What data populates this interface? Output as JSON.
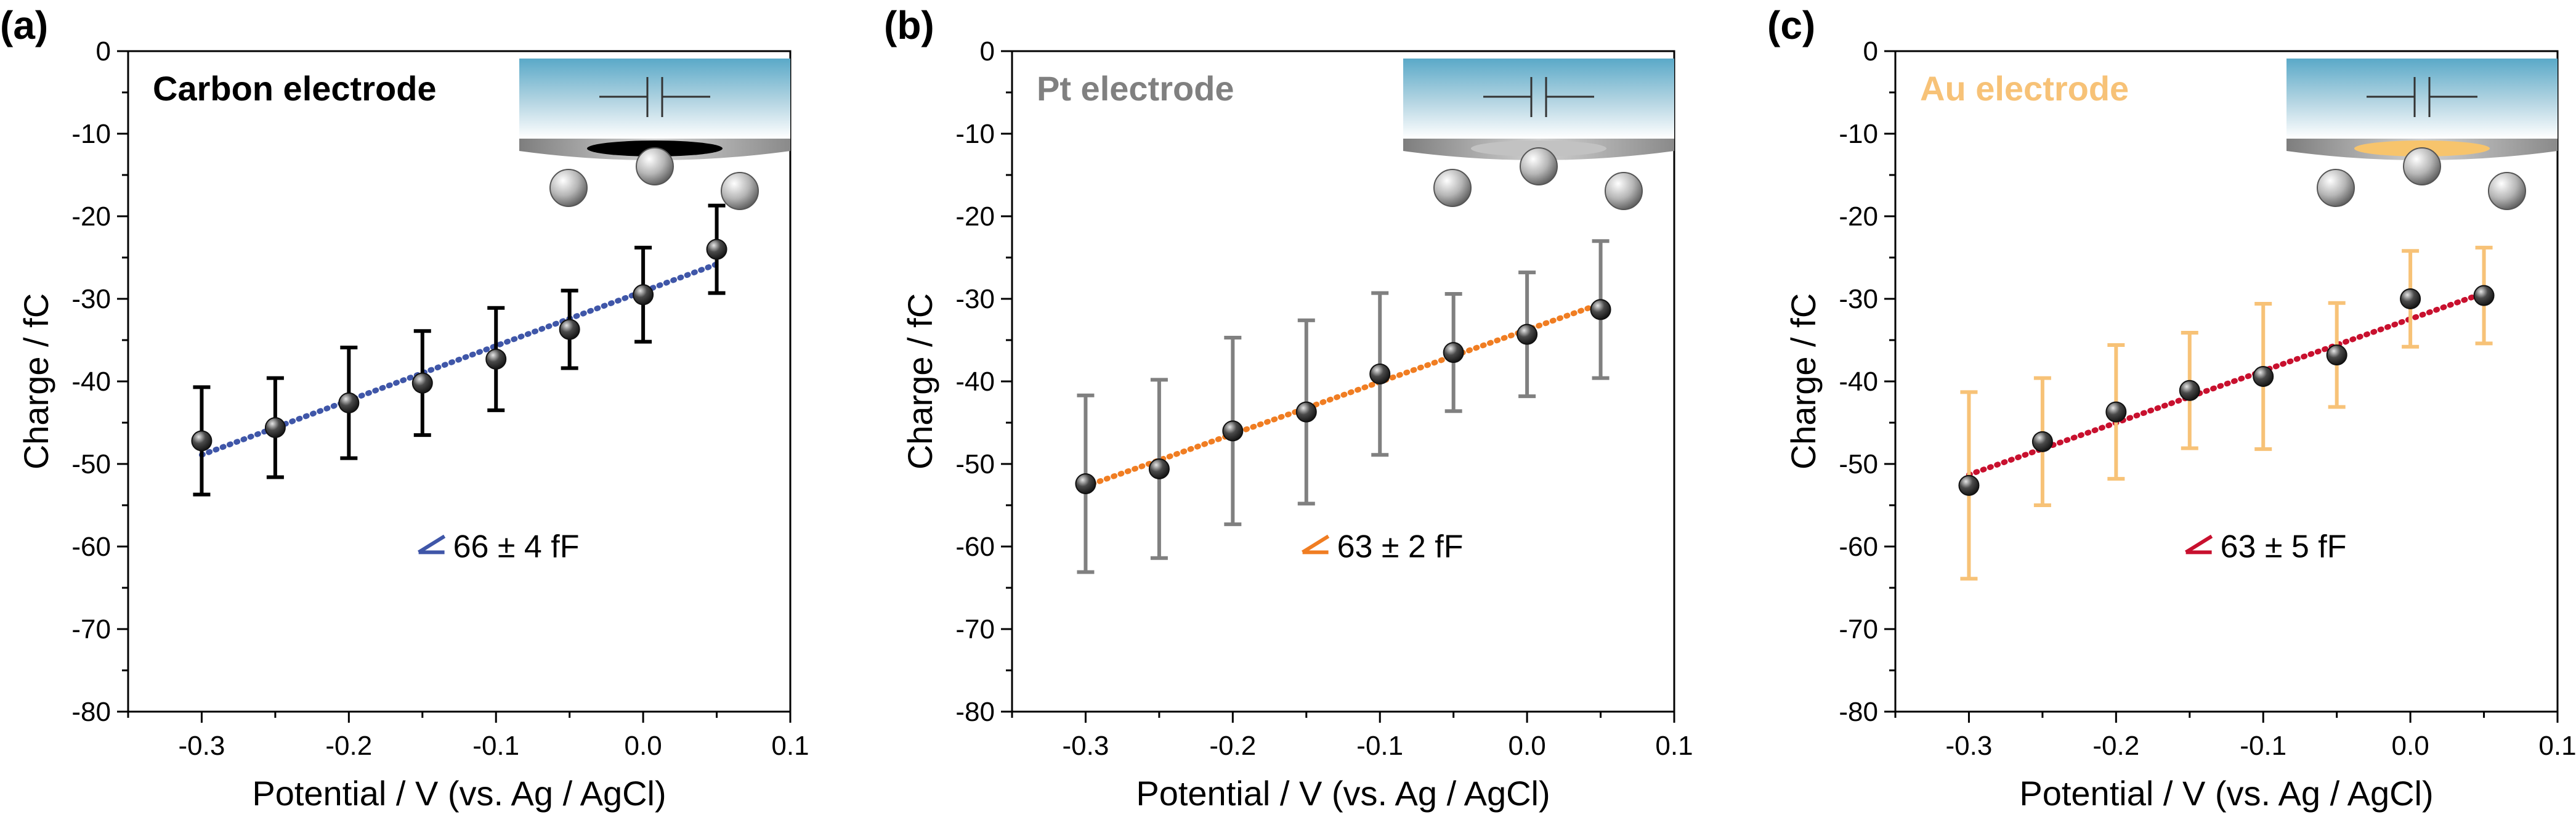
{
  "figure": {
    "x_label": "Potential / V (vs. Ag / AgCl)",
    "y_label": "Charge / fC"
  },
  "chart_data": [
    {
      "type": "scatter",
      "panel_label": "(a)",
      "title": "Carbon electrode",
      "title_color": "#000000",
      "marker_color": "#2a2a2a",
      "errorbar_color": "#000000",
      "fit_color": "#3f56a8",
      "annotation": "66 ± 4 fF",
      "electrode_color": "#000000",
      "xlabel": "Potential / V (vs. Ag / AgCl)",
      "ylabel": "Charge / fC",
      "xlim": [
        -0.35,
        0.1
      ],
      "ylim": [
        -80,
        0
      ],
      "xticks": [
        -0.3,
        -0.2,
        -0.1,
        0.0,
        0.1
      ],
      "xtick_labels": [
        "-0.3",
        "-0.2",
        "-0.1",
        "0.0",
        "0.1"
      ],
      "yticks": [
        0,
        -10,
        -20,
        -30,
        -40,
        -50,
        -60,
        -70,
        -80
      ],
      "ytick_labels": [
        "0",
        "-10",
        "-20",
        "-30",
        "-40",
        "-50",
        "-60",
        "-70",
        "-80"
      ],
      "x": [
        -0.3,
        -0.25,
        -0.2,
        -0.15,
        -0.1,
        -0.05,
        0.0,
        0.05
      ],
      "y": [
        -47.2,
        -45.6,
        -42.6,
        -40.2,
        -37.3,
        -33.7,
        -29.5,
        -24.0
      ],
      "err": [
        6.5,
        6.0,
        6.7,
        6.3,
        6.2,
        4.7,
        5.7,
        5.3
      ],
      "fit": {
        "x": [
          -0.3,
          0.05
        ],
        "y": [
          -48.9,
          -25.8
        ]
      }
    },
    {
      "type": "scatter",
      "panel_label": "(b)",
      "title": "Pt electrode",
      "title_color": "#808080",
      "marker_color": "#2a2a2a",
      "errorbar_color": "#808080",
      "fit_color": "#f07d22",
      "annotation": "63 ± 2 fF",
      "electrode_color": "#c2c2c2",
      "xlabel": "Potential / V (vs. Ag / AgCl)",
      "ylabel": "Charge / fC",
      "xlim": [
        -0.35,
        0.1
      ],
      "ylim": [
        -80,
        0
      ],
      "xticks": [
        -0.3,
        -0.2,
        -0.1,
        0.0,
        0.1
      ],
      "xtick_labels": [
        "-0.3",
        "-0.2",
        "-0.1",
        "0.0",
        "0.1"
      ],
      "yticks": [
        0,
        -10,
        -20,
        -30,
        -40,
        -50,
        -60,
        -70,
        -80
      ],
      "ytick_labels": [
        "0",
        "-10",
        "-20",
        "-30",
        "-40",
        "-50",
        "-60",
        "-70",
        "-80"
      ],
      "x": [
        -0.3,
        -0.25,
        -0.2,
        -0.15,
        -0.1,
        -0.05,
        0.0,
        0.05
      ],
      "y": [
        -52.4,
        -50.6,
        -46.0,
        -43.7,
        -39.1,
        -36.5,
        -34.3,
        -31.3
      ],
      "err": [
        10.7,
        10.8,
        11.3,
        11.1,
        9.8,
        7.1,
        7.5,
        8.3
      ],
      "fit": {
        "x": [
          -0.3,
          0.05
        ],
        "y": [
          -52.7,
          -30.6
        ]
      }
    },
    {
      "type": "scatter",
      "panel_label": "(c)",
      "title": "Au electrode",
      "title_color": "#f7c277",
      "marker_color": "#2a2a2a",
      "errorbar_color": "#f7c277",
      "fit_color": "#c8102e",
      "annotation": "63 ± 5 fF",
      "electrode_color": "#f7c46c",
      "xlabel": "Potential / V (vs. Ag / AgCl)",
      "ylabel": "Charge / fC",
      "xlim": [
        -0.35,
        0.1
      ],
      "ylim": [
        -80,
        0
      ],
      "xticks": [
        -0.3,
        -0.2,
        -0.1,
        0.0,
        0.1
      ],
      "xtick_labels": [
        "-0.3",
        "-0.2",
        "-0.1",
        "0.0",
        "0.1"
      ],
      "yticks": [
        0,
        -10,
        -20,
        -30,
        -40,
        -50,
        -60,
        -70,
        -80
      ],
      "ytick_labels": [
        "0",
        "-10",
        "-20",
        "-30",
        "-40",
        "-50",
        "-60",
        "-70",
        "-80"
      ],
      "x": [
        -0.3,
        -0.25,
        -0.2,
        -0.15,
        -0.1,
        -0.05,
        0.0,
        0.05
      ],
      "y": [
        -52.6,
        -47.3,
        -43.7,
        -41.1,
        -39.4,
        -36.8,
        -30.0,
        -29.6
      ],
      "err": [
        11.3,
        7.7,
        8.1,
        7.0,
        8.8,
        6.3,
        5.8,
        5.8
      ],
      "fit": {
        "x": [
          -0.3,
          0.05
        ],
        "y": [
          -51.3,
          -29.3
        ]
      }
    }
  ]
}
